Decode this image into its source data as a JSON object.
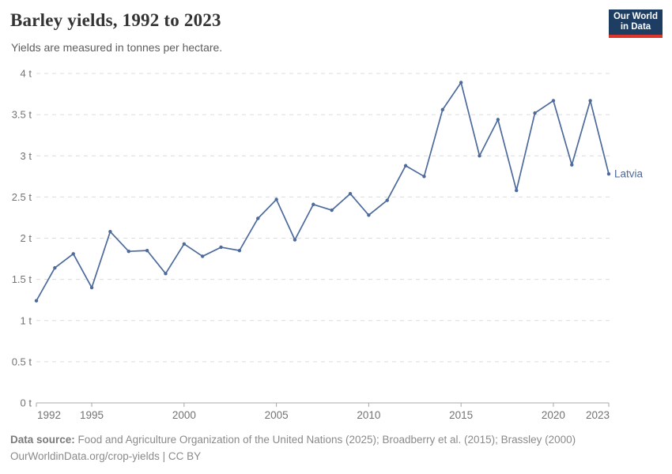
{
  "header": {
    "title": "Barley yields, 1992 to 2023",
    "subtitle": "Yields are measured in tonnes per hectare."
  },
  "logo": {
    "line1": "Our World",
    "line2": "in Data",
    "bg_color": "#1d3d63",
    "accent_color": "#dd352b"
  },
  "chart_data": {
    "type": "line",
    "title": "Barley yields, 1992 to 2023",
    "xlabel": "",
    "ylabel": "tonnes per hectare",
    "unit": " t",
    "grid": "horizontal-dashed",
    "legend_position": "end-of-line-label",
    "ylim": [
      0,
      4
    ],
    "yticks": [
      0,
      0.5,
      1,
      1.5,
      2,
      2.5,
      3,
      3.5,
      4
    ],
    "ytick_labels": [
      "0 t",
      "0.5 t",
      "1 t",
      "1.5 t",
      "2 t",
      "2.5 t",
      "3 t",
      "3.5 t",
      "4 t"
    ],
    "xticks": [
      1992,
      1995,
      2000,
      2005,
      2010,
      2015,
      2020,
      2023
    ],
    "x": [
      1992,
      1993,
      1994,
      1995,
      1996,
      1997,
      1998,
      1999,
      2000,
      2001,
      2002,
      2003,
      2004,
      2005,
      2006,
      2007,
      2008,
      2009,
      2010,
      2011,
      2012,
      2013,
      2014,
      2015,
      2016,
      2017,
      2018,
      2019,
      2020,
      2021,
      2022,
      2023
    ],
    "series": [
      {
        "name": "Latvia",
        "color": "#4c6a9c",
        "values": [
          1.24,
          1.64,
          1.81,
          1.4,
          2.08,
          1.84,
          1.85,
          1.57,
          1.93,
          1.78,
          1.89,
          1.85,
          2.24,
          2.47,
          1.98,
          2.41,
          2.34,
          2.54,
          2.28,
          2.46,
          2.88,
          2.75,
          3.56,
          3.89,
          3.0,
          3.44,
          2.58,
          3.52,
          3.67,
          2.89,
          3.67,
          2.78
        ]
      }
    ]
  },
  "colors": {
    "line": "#4c6a9c",
    "gridline": "#dcdcdc",
    "axis": "#a9a9a9",
    "tick_text": "#737373"
  },
  "footer": {
    "datasource_label": "Data source:",
    "datasource_text": " Food and Agriculture Organization of the United Nations (2025); Broadberry et al. (2015); Brassley (2000)",
    "line2": "OurWorldinData.org/crop-yields | CC BY"
  }
}
